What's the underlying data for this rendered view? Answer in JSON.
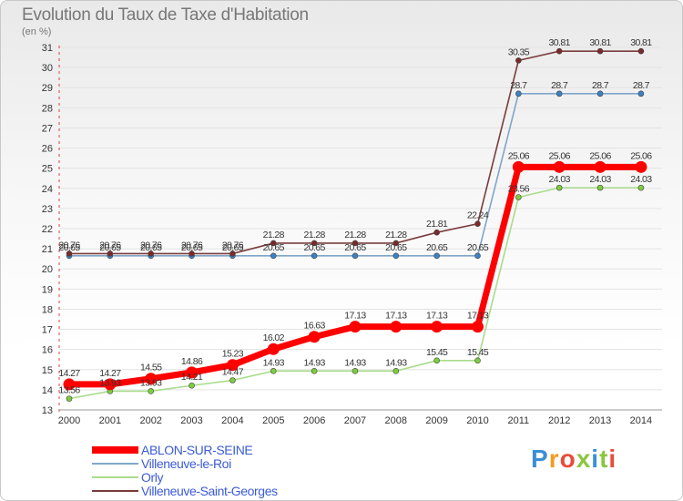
{
  "title": "Evolution du Taux de Taxe d'Habitation",
  "unit_label": "(en %)",
  "logo": {
    "text": "Proxiti",
    "colors": [
      "#3b8fd6",
      "#f39c1f",
      "#e74c3c",
      "#8cc63f"
    ]
  },
  "chart_data": {
    "type": "line",
    "x": [
      2000,
      2001,
      2002,
      2003,
      2004,
      2005,
      2006,
      2007,
      2008,
      2009,
      2010,
      2011,
      2012,
      2013,
      2014
    ],
    "ylim": [
      13,
      31
    ],
    "yticks": [
      13,
      14,
      15,
      16,
      17,
      18,
      19,
      20,
      21,
      22,
      23,
      24,
      25,
      26,
      27,
      28,
      29,
      30,
      31
    ],
    "grid": "horizontal",
    "legend_position": "bottom-left",
    "series": [
      {
        "name": "ABLON-SUR-SEINE",
        "color": "#ff0000",
        "highlight": true,
        "values": [
          14.27,
          14.27,
          14.55,
          14.86,
          15.23,
          16.02,
          16.63,
          17.13,
          17.13,
          17.13,
          17.13,
          25.06,
          25.06,
          25.06,
          25.06
        ],
        "labels": [
          "14.27",
          "14.27",
          "14.55",
          "14.86",
          "15.23",
          "16.02",
          "16.63",
          "17.13",
          "17.13",
          "17.13",
          "17.13",
          "25.06",
          "25.06",
          "25.06",
          "25.06"
        ]
      },
      {
        "name": "Villeneuve-le-Roi",
        "color": "#7fa6c9",
        "marker": "#3b82c4",
        "values": [
          20.65,
          20.65,
          20.65,
          20.65,
          20.65,
          20.65,
          20.65,
          20.65,
          20.65,
          20.65,
          20.65,
          28.7,
          28.7,
          28.7,
          28.7
        ],
        "labels": [
          "20.65",
          "20.65",
          "20.65",
          "20.65",
          "20.65",
          "20.65",
          "20.65",
          "20.65",
          "20.65",
          "20.65",
          "20.65",
          "28.7",
          "28.7",
          "28.7",
          "28.7"
        ]
      },
      {
        "name": "Orly",
        "color": "#a8dc8c",
        "marker": "#7ccd3c",
        "values": [
          13.56,
          13.93,
          13.93,
          14.21,
          14.47,
          14.93,
          14.93,
          14.93,
          14.93,
          15.45,
          15.45,
          23.56,
          24.03,
          24.03,
          24.03
        ],
        "labels": [
          "13.56",
          "13.93",
          "13.93",
          "14.21",
          "14.47",
          "14.93",
          "14.93",
          "14.93",
          "14.93",
          "15.45",
          "15.45",
          "23.56",
          "24.03",
          "24.03",
          "24.03"
        ]
      },
      {
        "name": "Villeneuve-Saint-Georges",
        "color": "#7a3c3c",
        "marker": "#7a2a2a",
        "values": [
          20.76,
          20.76,
          20.76,
          20.76,
          20.76,
          21.28,
          21.28,
          21.28,
          21.28,
          21.81,
          22.24,
          30.35,
          30.81,
          30.81,
          30.81
        ],
        "labels": [
          "20.76",
          "20.76",
          "20.76",
          "20.76",
          "20.76",
          "21.28",
          "21.28",
          "21.28",
          "21.28",
          "21.81",
          "22.24",
          "30.35",
          "30.81",
          "30.81",
          "30.81"
        ]
      }
    ]
  }
}
